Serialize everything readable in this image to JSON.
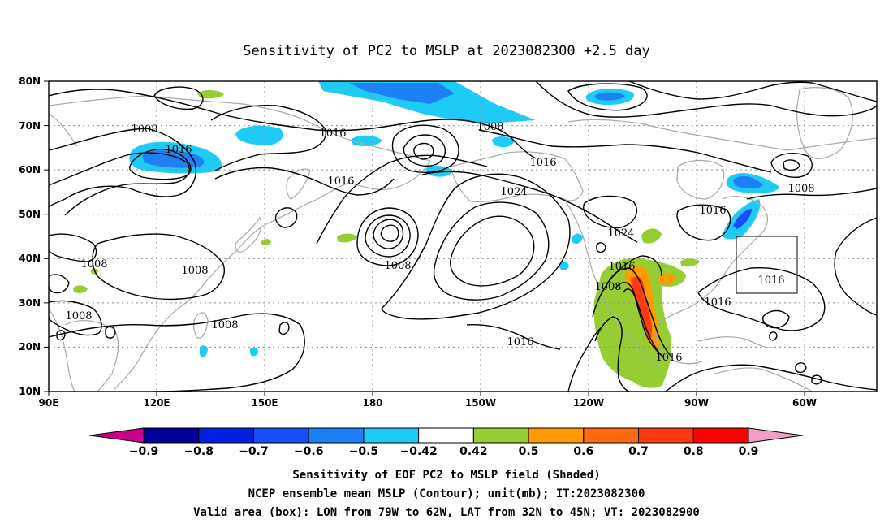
{
  "title": "Sensitivity of PC2 to MSLP at 2023082300 +2.5 day",
  "lat_labels": [
    "80N",
    "70N",
    "60N",
    "50N",
    "40N",
    "30N",
    "20N",
    "10N"
  ],
  "lon_labels": [
    "90E",
    "120E",
    "150E",
    "180",
    "150W",
    "120W",
    "90W",
    "60W"
  ],
  "contour_labels": [
    "1008",
    "1016",
    "1008",
    "1016",
    "1016",
    "1008",
    "1016",
    "1024",
    "1008",
    "1008",
    "1008",
    "1008",
    "1024",
    "1016",
    "1008",
    "1016",
    "1008",
    "1016",
    "1016",
    "1016"
  ],
  "colorbar": {
    "labels": [
      "-0.9",
      "-0.8",
      "-0.7",
      "-0.6",
      "-0.5",
      "-0.42",
      "0.42",
      "0.5",
      "0.6",
      "0.7",
      "0.8",
      "0.9"
    ],
    "colors": [
      "#00009a",
      "#0020e0",
      "#1a4dff",
      "#1e80f5",
      "#1ecbf5",
      "#ffffff",
      "#96cd32",
      "#ff9a00",
      "#ff6a10",
      "#ff3a10",
      "#ff0000"
    ],
    "left_end_color": "#c8008c",
    "right_end_color": "#f0a0c8"
  },
  "footer": {
    "line1": "Sensitivity of EOF PC2 to MSLP field (Shaded)",
    "line2": "NCEP ensemble mean MSLP (Contour); unit(mb); IT:2023082300",
    "line3": "Valid area (box): LON from 79W to 62W, LAT from 32N to 45N; VT: 2023082900"
  }
}
